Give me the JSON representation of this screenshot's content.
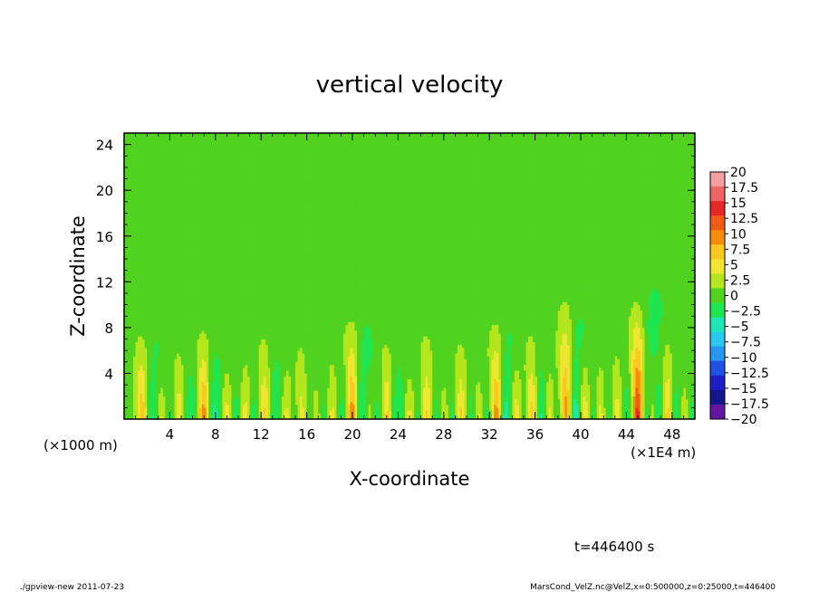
{
  "chart_data": {
    "type": "heatmap",
    "title": "vertical velocity",
    "xlabel": "X-coordinate",
    "ylabel": "Z-coordinate",
    "x_unit_left": "(×1000 m)",
    "x_unit_right": "(×1E4 m)",
    "xlim": [
      0,
      50
    ],
    "ylim": [
      0,
      25
    ],
    "x_ticks": [
      4,
      8,
      12,
      16,
      20,
      24,
      28,
      32,
      36,
      40,
      44,
      48
    ],
    "y_ticks": [
      4,
      8,
      12,
      16,
      20,
      24
    ],
    "colorbar": {
      "levels": [
        "20",
        "17.5",
        "15",
        "12.5",
        "10",
        "7.5",
        "5",
        "2.5",
        "0",
        "−2.5",
        "−5",
        "−7.5",
        "−10",
        "−12.5",
        "−15",
        "−17.5",
        "−20"
      ],
      "colors": [
        "#f4a0a0",
        "#f06464",
        "#e62828",
        "#f05a14",
        "#f58c0a",
        "#fac81e",
        "#f0e632",
        "#b4e61e",
        "#50d21e",
        "#1ee650",
        "#1ee6b4",
        "#28c8f0",
        "#2896f0",
        "#1e50e6",
        "#1e1ec8",
        "#14148c",
        "#6414a0"
      ]
    },
    "features": [
      {
        "x": 1.6,
        "ztop": 9,
        "amp": 9
      },
      {
        "x": 3.2,
        "ztop": 6,
        "amp": 6
      },
      {
        "x": 4.8,
        "ztop": 7,
        "amp": 7
      },
      {
        "x": 7.0,
        "ztop": 9,
        "amp": 12
      },
      {
        "x": 9.0,
        "ztop": 6,
        "amp": 6
      },
      {
        "x": 10.6,
        "ztop": 7,
        "amp": 7
      },
      {
        "x": 12.3,
        "ztop": 9,
        "amp": 8
      },
      {
        "x": 14.2,
        "ztop": 7,
        "amp": 6
      },
      {
        "x": 15.5,
        "ztop": 8,
        "amp": 7
      },
      {
        "x": 16.8,
        "ztop": 6,
        "amp": 6
      },
      {
        "x": 18.2,
        "ztop": 7,
        "amp": 7
      },
      {
        "x": 20.0,
        "ztop": 10,
        "amp": 12
      },
      {
        "x": 21.4,
        "ztop": 6,
        "amp": 6
      },
      {
        "x": 23.0,
        "ztop": 8,
        "amp": 8
      },
      {
        "x": 25.0,
        "ztop": 6,
        "amp": 6
      },
      {
        "x": 26.5,
        "ztop": 9,
        "amp": 8
      },
      {
        "x": 28.0,
        "ztop": 6,
        "amp": 6
      },
      {
        "x": 29.5,
        "ztop": 8,
        "amp": 9
      },
      {
        "x": 31.0,
        "ztop": 6,
        "amp": 6
      },
      {
        "x": 32.6,
        "ztop": 10,
        "amp": 13
      },
      {
        "x": 34.3,
        "ztop": 7,
        "amp": 7
      },
      {
        "x": 35.7,
        "ztop": 9,
        "amp": 11
      },
      {
        "x": 37.2,
        "ztop": 7,
        "amp": 7
      },
      {
        "x": 38.7,
        "ztop": 12,
        "amp": 13
      },
      {
        "x": 40.3,
        "ztop": 8,
        "amp": 9
      },
      {
        "x": 41.7,
        "ztop": 7,
        "amp": 7
      },
      {
        "x": 43.2,
        "ztop": 8,
        "amp": 8
      },
      {
        "x": 45.0,
        "ztop": 12,
        "amp": 17
      },
      {
        "x": 46.2,
        "ztop": 8,
        "amp": 9
      },
      {
        "x": 47.6,
        "ztop": 9,
        "amp": 11
      },
      {
        "x": 49.0,
        "ztop": 6,
        "amp": 6
      }
    ]
  },
  "annotations": {
    "time_label": "t=446400 s",
    "footer_left": "./gpview-new   2011-07-23",
    "footer_right": "MarsCond_VelZ.nc@VelZ,x=0:500000,z=0:25000,t=446400"
  }
}
